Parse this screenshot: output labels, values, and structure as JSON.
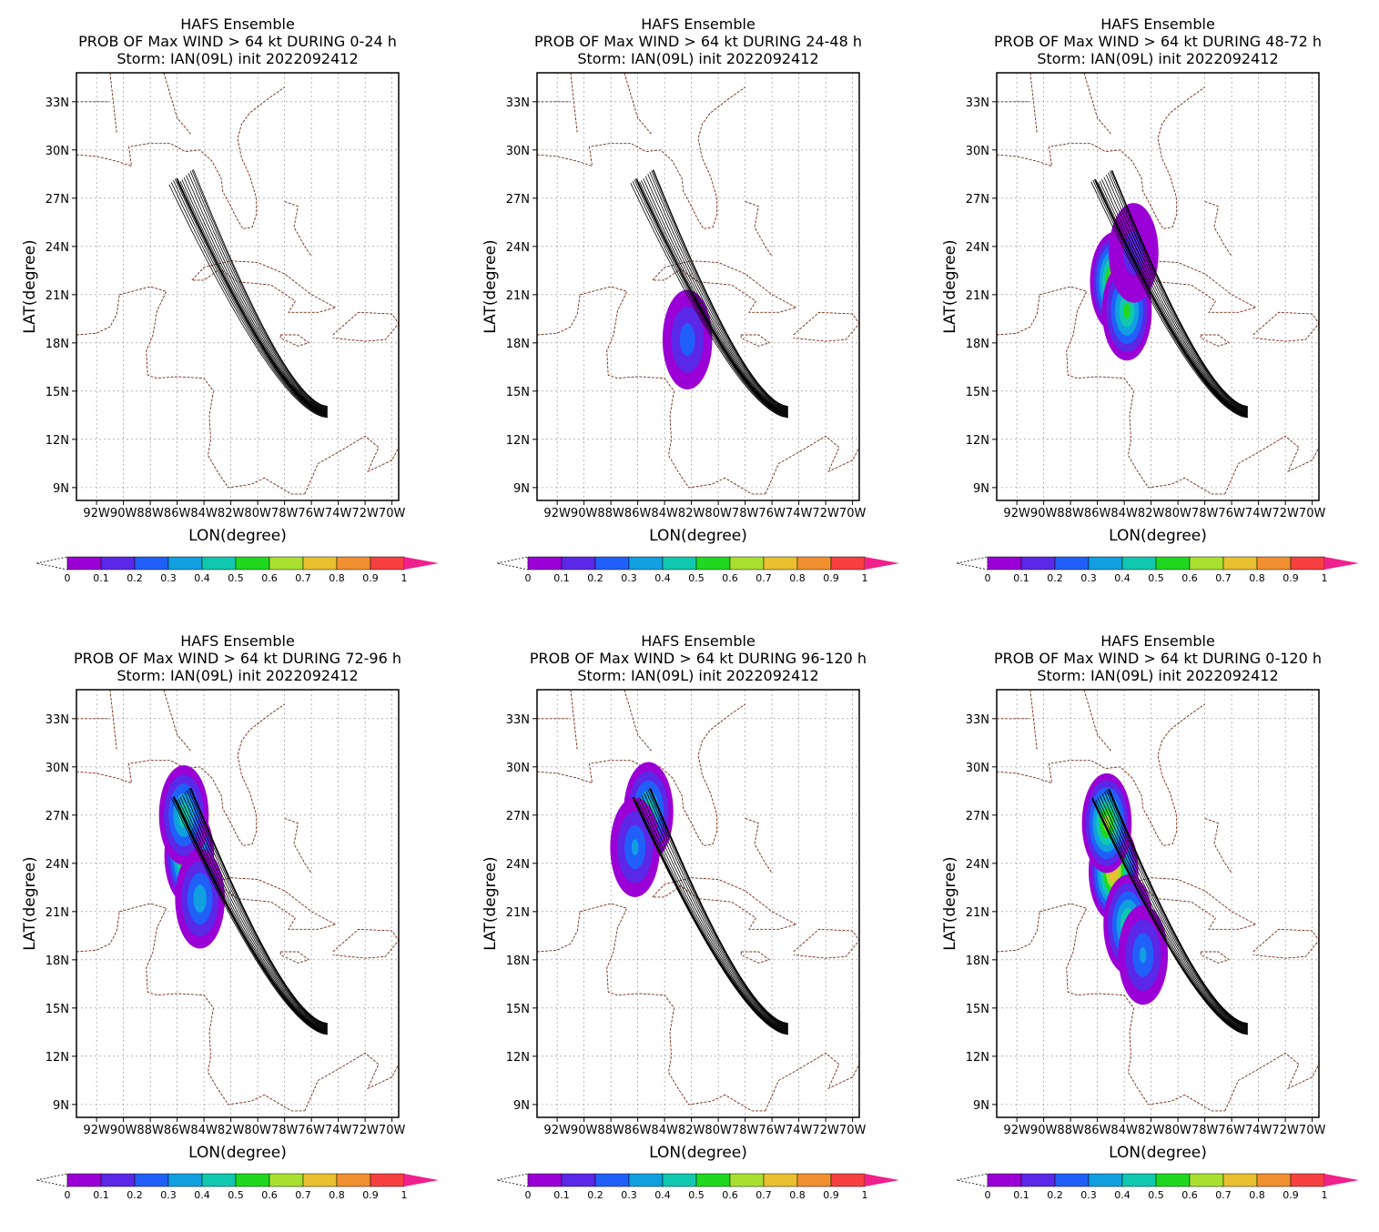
{
  "colors": {
    "colorbar": [
      "#9a00d6",
      "#5a28e6",
      "#2060f8",
      "#10a0e0",
      "#10c8b0",
      "#20d820",
      "#a8e030",
      "#e8c030",
      "#f09030",
      "#f84040"
    ],
    "colorbar_over": "#f0208c",
    "track": "#000000",
    "coast": "#7a2a10",
    "grid": "#888888"
  },
  "xlabel": "LON(degree)",
  "ylabel": "LAT(degree)",
  "xtick_labels": [
    "92W",
    "90W",
    "88W",
    "86W",
    "84W",
    "82W",
    "80W",
    "78W",
    "76W",
    "74W",
    "72W",
    "70W"
  ],
  "ytick_labels": [
    "9N",
    "12N",
    "15N",
    "18N",
    "21N",
    "24N",
    "27N",
    "30N",
    "33N"
  ],
  "colorbar_labels": [
    "0",
    "0.1",
    "0.2",
    "0.3",
    "0.4",
    "0.5",
    "0.6",
    "0.7",
    "0.8",
    "0.9",
    "1"
  ],
  "chart_data": [
    {
      "type": "heatmap",
      "title": "HAFS Ensemble",
      "subtitle": "PROB OF Max WIND > 64 kt DURING  0-24 h",
      "storm": "Storm: IAN(09L) init 2022092412",
      "xlabel": "LON(degree)",
      "ylabel": "LAT(degree)",
      "xlim": [
        -93.5,
        -69.5
      ],
      "ylim": [
        8.2,
        34.8
      ],
      "prob_swath": []
    },
    {
      "type": "heatmap",
      "title": "HAFS Ensemble",
      "subtitle": "PROB OF Max WIND > 64 kt DURING 24-48 h",
      "storm": "Storm: IAN(09L) init 2022092412",
      "xlabel": "LON(degree)",
      "ylabel": "LAT(degree)",
      "xlim": [
        -93.5,
        -69.5
      ],
      "ylim": [
        8.2,
        34.8
      ],
      "prob_swath": [
        {
          "lon": -82.3,
          "lat": 18.2,
          "peak": 0.25
        }
      ]
    },
    {
      "type": "heatmap",
      "title": "HAFS Ensemble",
      "subtitle": "PROB OF Max WIND > 64 kt DURING 48-72 h",
      "storm": "Storm: IAN(09L) init 2022092412",
      "xlabel": "LON(degree)",
      "ylabel": "LAT(degree)",
      "xlim": [
        -93.5,
        -69.5
      ],
      "ylim": [
        8.2,
        34.8
      ],
      "prob_swath": [
        {
          "lon": -84.7,
          "lat": 21.8,
          "peak": 0.7
        },
        {
          "lon": -83.8,
          "lat": 20.0,
          "peak": 0.5
        },
        {
          "lon": -83.3,
          "lat": 23.6,
          "peak": 0.15
        }
      ]
    },
    {
      "type": "heatmap",
      "title": "HAFS Ensemble",
      "subtitle": "PROB OF Max WIND > 64 kt DURING 72-96 h",
      "storm": "Storm: IAN(09L) init 2022092412",
      "xlabel": "LON(degree)",
      "ylabel": "LAT(degree)",
      "xlim": [
        -93.5,
        -69.5
      ],
      "ylim": [
        8.2,
        34.8
      ],
      "prob_swath": [
        {
          "lon": -85.1,
          "lat": 24.5,
          "peak": 0.75
        },
        {
          "lon": -85.5,
          "lat": 27.0,
          "peak": 0.45
        },
        {
          "lon": -84.3,
          "lat": 21.8,
          "peak": 0.35
        }
      ]
    },
    {
      "type": "heatmap",
      "title": "HAFS Ensemble",
      "subtitle": "PROB OF Max WIND > 64 kt DURING 96-120 h",
      "storm": "Storm: IAN(09L) init 2022092412",
      "xlabel": "LON(degree)",
      "ylabel": "LAT(degree)",
      "xlim": [
        -93.5,
        -69.5
      ],
      "ylim": [
        8.2,
        34.8
      ],
      "prob_swath": [
        {
          "lon": -85.2,
          "lat": 27.2,
          "peak": 0.45
        },
        {
          "lon": -86.2,
          "lat": 25.0,
          "peak": 0.3
        }
      ]
    },
    {
      "type": "heatmap",
      "title": "HAFS Ensemble",
      "subtitle": "PROB OF Max WIND > 64 kt DURING 0-120 h",
      "storm": "Storm: IAN(09L) init 2022092412",
      "xlabel": "LON(degree)",
      "ylabel": "LAT(degree)",
      "xlim": [
        -93.5,
        -69.5
      ],
      "ylim": [
        8.2,
        34.8
      ],
      "prob_swath": [
        {
          "lon": -84.8,
          "lat": 23.5,
          "peak": 0.75
        },
        {
          "lon": -85.3,
          "lat": 26.5,
          "peak": 0.6
        },
        {
          "lon": -83.7,
          "lat": 20.2,
          "peak": 0.5
        },
        {
          "lon": -82.6,
          "lat": 18.3,
          "peak": 0.3
        }
      ]
    }
  ]
}
